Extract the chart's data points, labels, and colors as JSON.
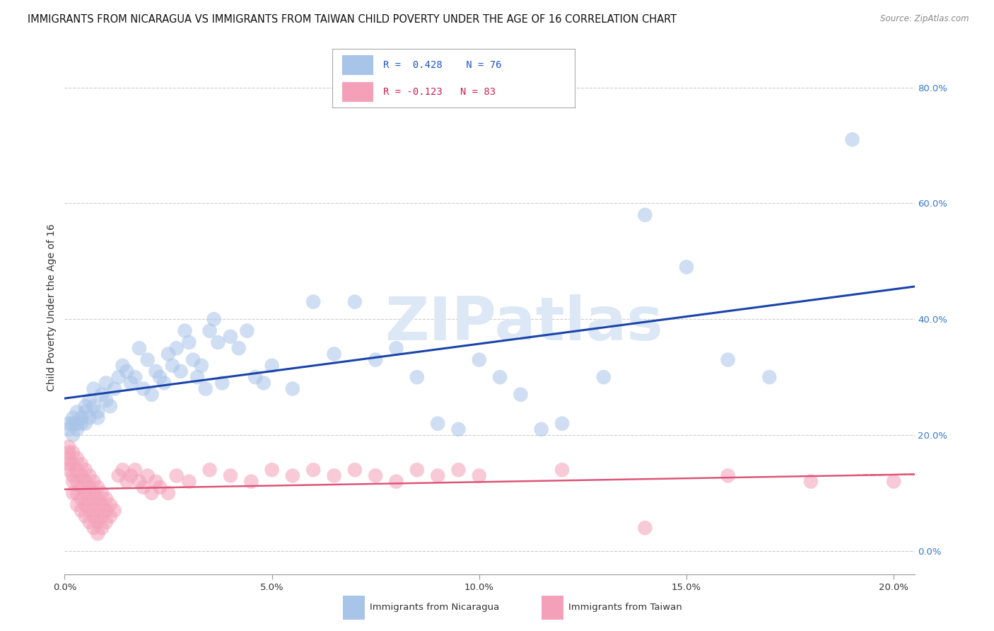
{
  "title": "IMMIGRANTS FROM NICARAGUA VS IMMIGRANTS FROM TAIWAN CHILD POVERTY UNDER THE AGE OF 16 CORRELATION CHART",
  "source": "Source: ZipAtlas.com",
  "ylabel": "Child Poverty Under the Age of 16",
  "xlabel_blue": "Immigrants from Nicaragua",
  "xlabel_pink": "Immigrants from Taiwan",
  "xlim": [
    0.0,
    0.205
  ],
  "ylim": [
    -0.04,
    0.88
  ],
  "ytick_vals": [
    0.0,
    0.2,
    0.4,
    0.6,
    0.8
  ],
  "xtick_vals": [
    0.0,
    0.05,
    0.1,
    0.15,
    0.2
  ],
  "R_blue": 0.428,
  "N_blue": 76,
  "R_pink": -0.123,
  "N_pink": 83,
  "blue_scatter_color": "#a8c4e8",
  "pink_scatter_color": "#f4a0b8",
  "blue_line_color": "#1a44aa",
  "pink_line_color": "#dd5577",
  "watermark_text": "ZIPatlas",
  "watermark_color": "#dce8f5",
  "blue_scatter": [
    [
      0.001,
      0.22
    ],
    [
      0.001,
      0.21
    ],
    [
      0.002,
      0.23
    ],
    [
      0.002,
      0.22
    ],
    [
      0.002,
      0.2
    ],
    [
      0.003,
      0.24
    ],
    [
      0.003,
      0.22
    ],
    [
      0.003,
      0.21
    ],
    [
      0.004,
      0.23
    ],
    [
      0.004,
      0.22
    ],
    [
      0.005,
      0.25
    ],
    [
      0.005,
      0.24
    ],
    [
      0.005,
      0.22
    ],
    [
      0.006,
      0.26
    ],
    [
      0.006,
      0.23
    ],
    [
      0.007,
      0.28
    ],
    [
      0.007,
      0.25
    ],
    [
      0.008,
      0.24
    ],
    [
      0.008,
      0.23
    ],
    [
      0.009,
      0.27
    ],
    [
      0.01,
      0.29
    ],
    [
      0.01,
      0.26
    ],
    [
      0.011,
      0.25
    ],
    [
      0.012,
      0.28
    ],
    [
      0.013,
      0.3
    ],
    [
      0.014,
      0.32
    ],
    [
      0.015,
      0.31
    ],
    [
      0.016,
      0.29
    ],
    [
      0.017,
      0.3
    ],
    [
      0.018,
      0.35
    ],
    [
      0.019,
      0.28
    ],
    [
      0.02,
      0.33
    ],
    [
      0.021,
      0.27
    ],
    [
      0.022,
      0.31
    ],
    [
      0.023,
      0.3
    ],
    [
      0.024,
      0.29
    ],
    [
      0.025,
      0.34
    ],
    [
      0.026,
      0.32
    ],
    [
      0.027,
      0.35
    ],
    [
      0.028,
      0.31
    ],
    [
      0.029,
      0.38
    ],
    [
      0.03,
      0.36
    ],
    [
      0.031,
      0.33
    ],
    [
      0.032,
      0.3
    ],
    [
      0.033,
      0.32
    ],
    [
      0.034,
      0.28
    ],
    [
      0.035,
      0.38
    ],
    [
      0.036,
      0.4
    ],
    [
      0.037,
      0.36
    ],
    [
      0.038,
      0.29
    ],
    [
      0.04,
      0.37
    ],
    [
      0.042,
      0.35
    ],
    [
      0.044,
      0.38
    ],
    [
      0.046,
      0.3
    ],
    [
      0.048,
      0.29
    ],
    [
      0.05,
      0.32
    ],
    [
      0.055,
      0.28
    ],
    [
      0.06,
      0.43
    ],
    [
      0.065,
      0.34
    ],
    [
      0.07,
      0.43
    ],
    [
      0.075,
      0.33
    ],
    [
      0.08,
      0.35
    ],
    [
      0.085,
      0.3
    ],
    [
      0.09,
      0.22
    ],
    [
      0.095,
      0.21
    ],
    [
      0.1,
      0.33
    ],
    [
      0.105,
      0.3
    ],
    [
      0.11,
      0.27
    ],
    [
      0.115,
      0.21
    ],
    [
      0.12,
      0.22
    ],
    [
      0.13,
      0.3
    ],
    [
      0.14,
      0.58
    ],
    [
      0.15,
      0.49
    ],
    [
      0.16,
      0.33
    ],
    [
      0.17,
      0.3
    ],
    [
      0.19,
      0.71
    ]
  ],
  "pink_scatter": [
    [
      0.001,
      0.18
    ],
    [
      0.001,
      0.17
    ],
    [
      0.001,
      0.16
    ],
    [
      0.001,
      0.15
    ],
    [
      0.001,
      0.14
    ],
    [
      0.002,
      0.17
    ],
    [
      0.002,
      0.15
    ],
    [
      0.002,
      0.13
    ],
    [
      0.002,
      0.12
    ],
    [
      0.002,
      0.1
    ],
    [
      0.003,
      0.16
    ],
    [
      0.003,
      0.14
    ],
    [
      0.003,
      0.12
    ],
    [
      0.003,
      0.1
    ],
    [
      0.003,
      0.08
    ],
    [
      0.004,
      0.15
    ],
    [
      0.004,
      0.13
    ],
    [
      0.004,
      0.11
    ],
    [
      0.004,
      0.09
    ],
    [
      0.004,
      0.07
    ],
    [
      0.005,
      0.14
    ],
    [
      0.005,
      0.12
    ],
    [
      0.005,
      0.1
    ],
    [
      0.005,
      0.08
    ],
    [
      0.005,
      0.06
    ],
    [
      0.006,
      0.13
    ],
    [
      0.006,
      0.11
    ],
    [
      0.006,
      0.09
    ],
    [
      0.006,
      0.07
    ],
    [
      0.006,
      0.05
    ],
    [
      0.007,
      0.12
    ],
    [
      0.007,
      0.1
    ],
    [
      0.007,
      0.08
    ],
    [
      0.007,
      0.06
    ],
    [
      0.007,
      0.04
    ],
    [
      0.008,
      0.11
    ],
    [
      0.008,
      0.09
    ],
    [
      0.008,
      0.07
    ],
    [
      0.008,
      0.05
    ],
    [
      0.008,
      0.03
    ],
    [
      0.009,
      0.1
    ],
    [
      0.009,
      0.08
    ],
    [
      0.009,
      0.06
    ],
    [
      0.009,
      0.04
    ],
    [
      0.01,
      0.09
    ],
    [
      0.01,
      0.07
    ],
    [
      0.01,
      0.05
    ],
    [
      0.011,
      0.08
    ],
    [
      0.011,
      0.06
    ],
    [
      0.012,
      0.07
    ],
    [
      0.013,
      0.13
    ],
    [
      0.014,
      0.14
    ],
    [
      0.015,
      0.12
    ],
    [
      0.016,
      0.13
    ],
    [
      0.017,
      0.14
    ],
    [
      0.018,
      0.12
    ],
    [
      0.019,
      0.11
    ],
    [
      0.02,
      0.13
    ],
    [
      0.021,
      0.1
    ],
    [
      0.022,
      0.12
    ],
    [
      0.023,
      0.11
    ],
    [
      0.025,
      0.1
    ],
    [
      0.027,
      0.13
    ],
    [
      0.03,
      0.12
    ],
    [
      0.035,
      0.14
    ],
    [
      0.04,
      0.13
    ],
    [
      0.045,
      0.12
    ],
    [
      0.05,
      0.14
    ],
    [
      0.055,
      0.13
    ],
    [
      0.06,
      0.14
    ],
    [
      0.065,
      0.13
    ],
    [
      0.07,
      0.14
    ],
    [
      0.075,
      0.13
    ],
    [
      0.08,
      0.12
    ],
    [
      0.085,
      0.14
    ],
    [
      0.09,
      0.13
    ],
    [
      0.095,
      0.14
    ],
    [
      0.1,
      0.13
    ],
    [
      0.12,
      0.14
    ],
    [
      0.14,
      0.04
    ],
    [
      0.16,
      0.13
    ],
    [
      0.18,
      0.12
    ],
    [
      0.2,
      0.12
    ]
  ]
}
